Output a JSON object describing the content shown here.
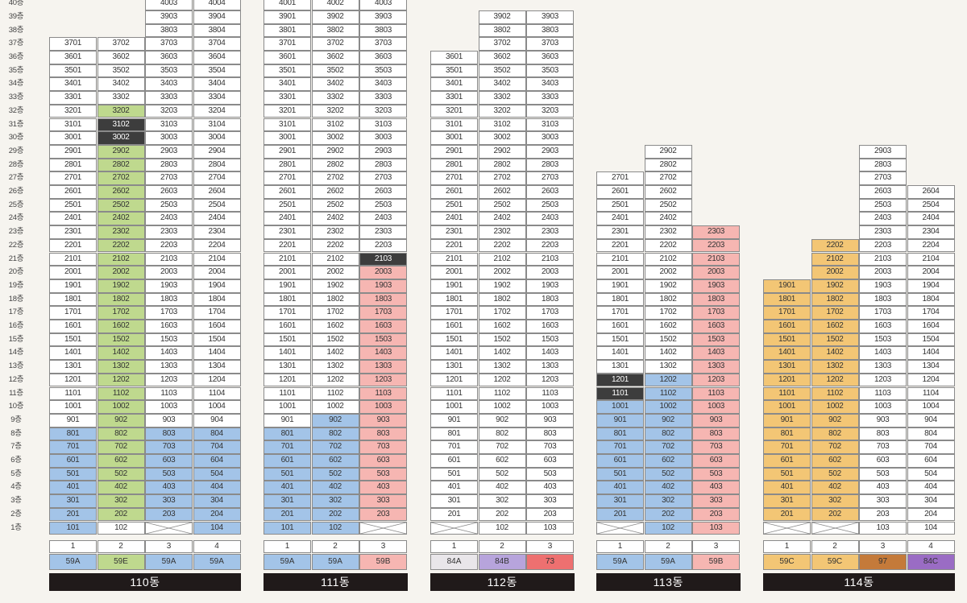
{
  "colors": {
    "59A": "#a3c4e8",
    "59B": "#f6b6b2",
    "59E": "#bfd98e",
    "59C": "#f3c675",
    "84A": "#e9e6ea",
    "84B": "#b7a4dc",
    "73": "#ee7070",
    "97": "#c47a3a",
    "84C": "#9a6cc4"
  },
  "floor_labels": [
    "40층",
    "39층",
    "38층",
    "37층",
    "36층",
    "35층",
    "34층",
    "33층",
    "32층",
    "31층",
    "30층",
    "29층",
    "28층",
    "27층",
    "26층",
    "25층",
    "24층",
    "23층",
    "22층",
    "21층",
    "20층",
    "19층",
    "18층",
    "17층",
    "16층",
    "15층",
    "14층",
    "13층",
    "12층",
    "11층",
    "10층",
    "9층",
    "8층",
    "7층",
    "6층",
    "5층",
    "4층",
    "3층",
    "2층",
    "1층"
  ],
  "buildings": [
    {
      "name": "110동",
      "columns": [
        {
          "line": "1",
          "type": "59A",
          "top": 37,
          "floor1": "num",
          "ranges": [
            {
              "from": 2,
              "to": 8,
              "c": "b"
            },
            {
              "from": 1,
              "to": 1,
              "c": "b"
            }
          ]
        },
        {
          "line": "2",
          "type": "59E",
          "top": 37,
          "floor1": "num",
          "ranges": [
            {
              "from": 2,
              "to": 32,
              "c": "g"
            },
            {
              "from": 30,
              "to": 31,
              "c": "d"
            }
          ]
        },
        {
          "line": "3",
          "type": "59A",
          "top": 40,
          "floor1": "x",
          "ranges": [
            {
              "from": 2,
              "to": 8,
              "c": "b"
            }
          ]
        },
        {
          "line": "4",
          "type": "59A",
          "top": 40,
          "floor1": "num",
          "ranges": [
            {
              "from": 1,
              "to": 8,
              "c": "b"
            }
          ]
        }
      ]
    },
    {
      "name": "111동",
      "columns": [
        {
          "line": "1",
          "type": "59A",
          "top": 40,
          "floor1": "num",
          "ranges": [
            {
              "from": 1,
              "to": 8,
              "c": "b"
            }
          ]
        },
        {
          "line": "2",
          "type": "59A",
          "top": 40,
          "floor1": "num",
          "ranges": [
            {
              "from": 1,
              "to": 9,
              "c": "b"
            }
          ]
        },
        {
          "line": "3",
          "type": "59B",
          "top": 40,
          "floor1": "x",
          "ranges": [
            {
              "from": 2,
              "to": 20,
              "c": "p"
            },
            {
              "from": 21,
              "to": 21,
              "c": "d"
            }
          ]
        }
      ]
    },
    {
      "name": "112동",
      "columns": [
        {
          "line": "1",
          "type": "84A",
          "top": 36,
          "floor1": "x",
          "ranges": []
        },
        {
          "line": "2",
          "type": "84B",
          "top": 39,
          "floor1": "num",
          "ranges": []
        },
        {
          "line": "3",
          "type": "73",
          "top": 39,
          "floor1": "num",
          "ranges": []
        }
      ]
    },
    {
      "name": "113동",
      "columns": [
        {
          "line": "1",
          "type": "59A",
          "top": 27,
          "floor1": "x",
          "ranges": [
            {
              "from": 2,
              "to": 10,
              "c": "b"
            },
            {
              "from": 11,
              "to": 12,
              "c": "d"
            }
          ]
        },
        {
          "line": "2",
          "type": "59A",
          "top": 29,
          "floor1": "num",
          "ranges": [
            {
              "from": 1,
              "to": 12,
              "c": "b"
            }
          ]
        },
        {
          "line": "3",
          "type": "59B",
          "top": 23,
          "floor1": "num",
          "ranges": [
            {
              "from": 1,
              "to": 23,
              "c": "p"
            }
          ]
        }
      ]
    },
    {
      "name": "114동",
      "columns": [
        {
          "line": "1",
          "type": "59C",
          "top": 19,
          "floor1": "x",
          "ranges": [
            {
              "from": 2,
              "to": 19,
              "c": "o"
            }
          ]
        },
        {
          "line": "2",
          "type": "59C",
          "top": 22,
          "floor1": "x",
          "ranges": [
            {
              "from": 2,
              "to": 22,
              "c": "o"
            }
          ]
        },
        {
          "line": "3",
          "type": "97",
          "top": 29,
          "floor1": "num",
          "ranges": []
        },
        {
          "line": "4",
          "type": "84C",
          "top": 26,
          "floor1": "num",
          "ranges": []
        }
      ]
    }
  ]
}
